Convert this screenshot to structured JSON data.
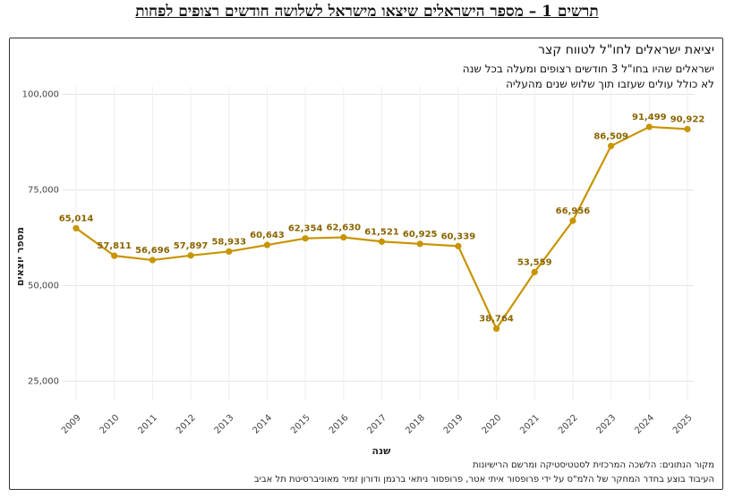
{
  "figure_title": "תרשים 1 – מספר הישראלים שיצאו מישראל לשלושה חודשים רצופים לפחות",
  "chart_data": {
    "type": "line",
    "title": "יציאת ישראלים לחו\"ל לטווח קצר",
    "subtitle_line1": "ישראלים שהיו בחו\"ל 3 חודשים רצופים ומעלה בכל שנה",
    "subtitle_line2": "לא כולל עולים שעזבו תוך שלוש שנים מהעליה",
    "xlabel": "שנה",
    "ylabel": "מספר יוצאים",
    "x": [
      "2009",
      "2010",
      "2011",
      "2012",
      "2013",
      "2014",
      "2015",
      "2016",
      "2017",
      "2018",
      "2019",
      "2020",
      "2021",
      "2022",
      "2023",
      "2024",
      "2025"
    ],
    "values": [
      65014,
      57811,
      56696,
      57897,
      58933,
      60643,
      62354,
      62630,
      61521,
      60925,
      60339,
      38764,
      53559,
      66956,
      86509,
      91499,
      90922
    ],
    "data_labels": [
      "65,014",
      "57,811",
      "56,696",
      "57,897",
      "58,933",
      "60,643",
      "62,354",
      "62,630",
      "61,521",
      "60,925",
      "60,339",
      "38,764",
      "53,559",
      "66,956",
      "86,509",
      "91,499",
      "90,922"
    ],
    "yticks": [
      25000,
      50000,
      75000,
      100000
    ],
    "ytick_labels": [
      "25,000",
      "50,000",
      "75,000",
      "100,000"
    ],
    "ylim": [
      20000,
      102000
    ],
    "grid": true,
    "line_color": "#c89400",
    "source_line1": "מקור הנתונים: הלשכה המרכזית לסטטיסטיקה ומרשם הרישיונות",
    "source_line2": "העיבוד בוצע בחדר המחקר של הלמ\"ס על ידי פרופסור איתי אטר, פרופסור ניתאי ברגמן ודורון זמיר מאוניברסיטת תל אביב"
  }
}
